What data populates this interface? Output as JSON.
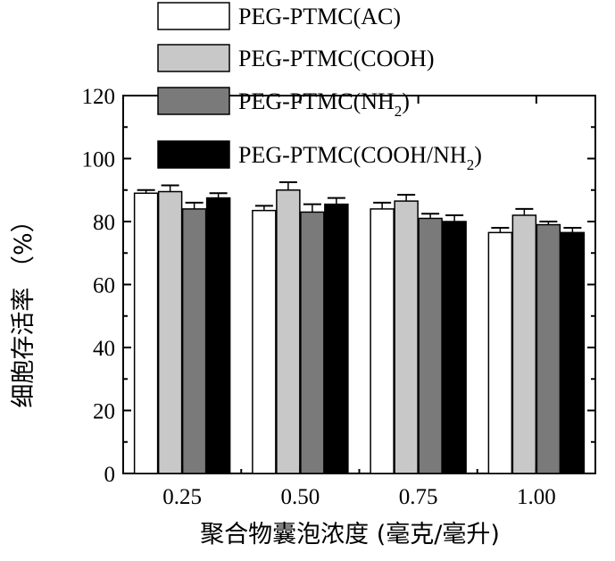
{
  "chart_data": {
    "type": "bar",
    "title": "",
    "xlabel": "聚合物囊泡浓度 (毫克/毫升)",
    "ylabel": "细胞存活率 （%）",
    "categories": [
      "0.25",
      "0.50",
      "0.75",
      "1.00"
    ],
    "ylim": [
      0,
      120
    ],
    "yticks": [
      "0",
      "20",
      "40",
      "60",
      "80",
      "100",
      "120"
    ],
    "grid": false,
    "legend_position": "top",
    "series": [
      {
        "name": "PEG-PTMC(AC)",
        "legend_base": "PEG-PTMC(AC)",
        "legend_sub": "",
        "legend_tail": "",
        "color": "#ffffff",
        "values": [
          89,
          83.5,
          84,
          76.5
        ],
        "errors": [
          1,
          1.5,
          2,
          1.5
        ]
      },
      {
        "name": "PEG-PTMC(COOH)",
        "legend_base": "PEG-PTMC(COOH)",
        "legend_sub": "",
        "legend_tail": "",
        "color": "#c8c8c8",
        "values": [
          89.5,
          90,
          86.5,
          82
        ],
        "errors": [
          2,
          2.5,
          2,
          2
        ]
      },
      {
        "name": "PEG-PTMC(NH2)",
        "legend_base": "PEG-PTMC(NH",
        "legend_sub": "2",
        "legend_tail": ")",
        "color": "#7a7a7a",
        "values": [
          84,
          83,
          81,
          79
        ],
        "errors": [
          2,
          2.5,
          1.5,
          1
        ]
      },
      {
        "name": "PEG-PTMC(COOH/NH2)",
        "legend_base": "PEG-PTMC(COOH/NH",
        "legend_sub": "2",
        "legend_tail": ")",
        "color": "#000000",
        "values": [
          87.5,
          85.5,
          80,
          76.5
        ],
        "errors": [
          1.5,
          2,
          2,
          1.5
        ]
      }
    ]
  }
}
